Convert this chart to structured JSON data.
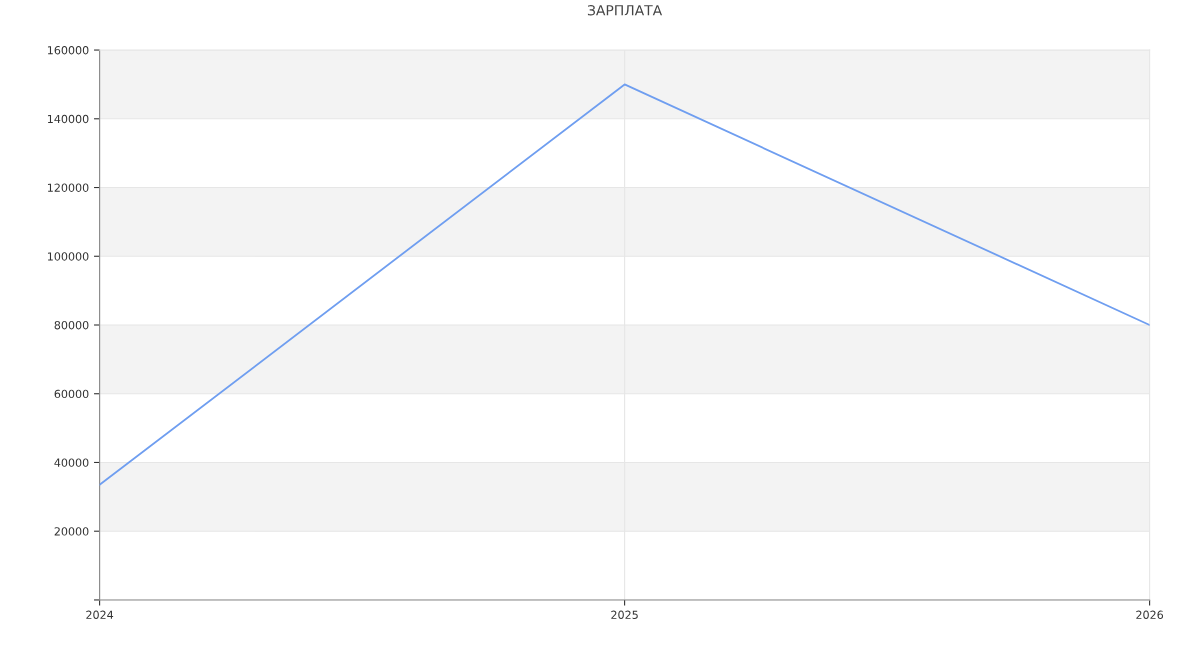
{
  "chart_data": {
    "type": "line",
    "title": "ЗАРПЛАТА",
    "x": [
      2024,
      2025,
      2026
    ],
    "series": [
      {
        "color": "#6f9ef0",
        "values": [
          33500,
          150000,
          80000
        ]
      }
    ],
    "xlim": [
      2024,
      2026
    ],
    "xticks": [
      2024,
      2025,
      2026
    ],
    "ylim": [
      0,
      160000
    ],
    "yticks": [
      {
        "value": 0,
        "label": null
      },
      20000,
      40000,
      60000,
      80000,
      100000,
      120000,
      140000,
      160000
    ],
    "bands": [
      {
        "axis": "y",
        "from": 20000,
        "to": 40000,
        "color": "#f3f3f3"
      },
      {
        "axis": "y",
        "from": 60000,
        "to": 80000,
        "color": "#f3f3f3"
      },
      {
        "axis": "y",
        "from": 100000,
        "to": 120000,
        "color": "#f3f3f3"
      },
      {
        "axis": "y",
        "from": 140000,
        "to": 160000,
        "color": "#f3f3f3"
      }
    ],
    "grid": true,
    "marker": "none",
    "line_style": "solid"
  }
}
